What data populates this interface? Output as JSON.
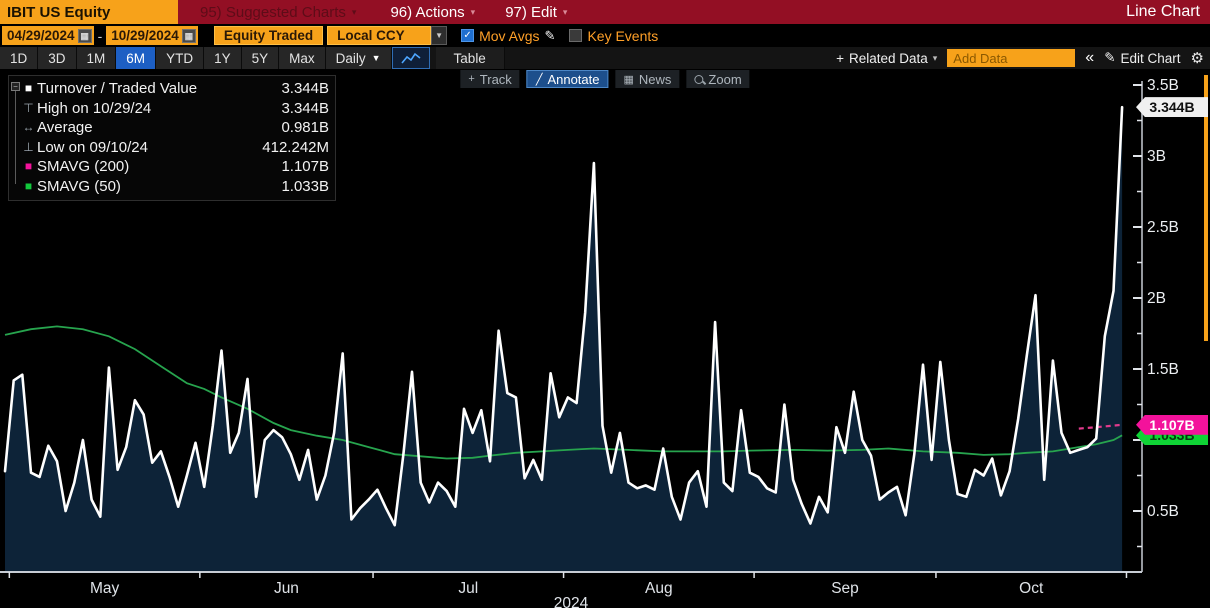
{
  "title_bar": {
    "ticker": "IBIT US Equity",
    "suggested_label": "95) Suggested Charts",
    "actions_label": "96) Actions",
    "edit_label": "97) Edit",
    "screen_label": "Line Chart"
  },
  "toolbar_filters": {
    "date_from": "04/29/2024",
    "date_sep": "-",
    "date_to": "10/29/2024",
    "security_field": "Equity Traded",
    "currency_field": "Local CCY",
    "mov_avgs_label": "Mov Avgs",
    "key_events_label": "Key Events",
    "mov_avgs_checked": true,
    "key_events_checked": false,
    "check_glyph": "✓"
  },
  "toolbar_ranges": {
    "ranges": [
      "1D",
      "3D",
      "1M",
      "6M",
      "YTD",
      "1Y",
      "5Y",
      "Max"
    ],
    "selected": "6M",
    "period": "Daily",
    "table_label": "Table",
    "related_data_plus": "+",
    "related_data_label": "Related Data",
    "add_data_placeholder": "Add Data",
    "collapse_label": "«",
    "edit_chart_label": "Edit Chart",
    "edit_chart_icon": "✎",
    "gear_icon": "⚙"
  },
  "chart_toolbar": {
    "buttons": [
      {
        "label": "Track",
        "icon": "+",
        "active": false
      },
      {
        "label": "Annotate",
        "icon": "╱",
        "active": true
      },
      {
        "label": "News",
        "icon": "▦",
        "active": false
      },
      {
        "label": "Zoom",
        "icon": "",
        "active": false
      }
    ]
  },
  "legend": {
    "rows": [
      {
        "glyph": "■",
        "color": "#ffffff",
        "label": "Turnover / Traded Value",
        "value": "3.344B"
      },
      {
        "glyph": "⊤",
        "color": "#9aa4ad",
        "label": "High on 10/29/24",
        "value": "3.344B"
      },
      {
        "glyph": "↔",
        "color": "#9aa4ad",
        "label": "Average",
        "value": "0.981B"
      },
      {
        "glyph": "⊥",
        "color": "#9aa4ad",
        "label": "Low on 09/10/24",
        "value": "412.242M"
      },
      {
        "glyph": "■",
        "color": "#f3129b",
        "label": "SMAVG (200)",
        "value": "1.107B"
      },
      {
        "glyph": "■",
        "color": "#12c93c",
        "label": "SMAVG (50)",
        "value": "1.033B"
      }
    ]
  },
  "axis_tags": {
    "last": {
      "text": "3.344B",
      "value": 3.344,
      "bg": "#f0f0f0",
      "fg": "#101010"
    },
    "smavg200": {
      "text": "1.107B",
      "value": 1.107,
      "bg": "#f3129b",
      "fg": "#ffffff"
    },
    "smavg50": {
      "text": "1.033B",
      "value": 1.033,
      "bg": "#0fd335",
      "fg": "#053a0e"
    }
  },
  "chart_data": {
    "type": "area",
    "title": "IBIT US Equity — Turnover / Traded Value, Daily, 04/29/2024 - 10/29/2024",
    "ylabel": "Turnover / Traded Value",
    "unit": "B (local ccy)",
    "ylim": [
      0,
      3.6
    ],
    "grid": false,
    "legend_position": "top-left",
    "y_ticks": [
      {
        "value": 0.25
      },
      {
        "value": 0.5,
        "label": "0.5B"
      },
      {
        "value": 0.75
      },
      {
        "value": 1.0,
        "label": "1B"
      },
      {
        "value": 1.25
      },
      {
        "value": 1.5,
        "label": "1.5B"
      },
      {
        "value": 1.75
      },
      {
        "value": 2.0,
        "label": "2B"
      },
      {
        "value": 2.25
      },
      {
        "value": 2.5,
        "label": "2.5B"
      },
      {
        "value": 2.75
      },
      {
        "value": 3.0,
        "label": "3B"
      },
      {
        "value": 3.25
      },
      {
        "value": 3.5,
        "label": "3.5B"
      }
    ],
    "x_axis": {
      "month_labels": [
        "May",
        "Jun",
        "Jul",
        "Aug",
        "Sep",
        "Oct"
      ],
      "month_start_days": [
        0.5,
        22.5,
        42.5,
        64.5,
        86.5,
        107.5
      ],
      "end_day": 129.5,
      "year_label": "2024"
    },
    "series": [
      {
        "name": "Turnover / Traded Value",
        "type": "area-line",
        "color": "#ffffff",
        "fill": "#0d2338",
        "values": [
          0.78,
          1.42,
          1.46,
          0.77,
          0.74,
          0.96,
          0.85,
          0.5,
          0.7,
          1.0,
          0.58,
          0.46,
          1.51,
          0.79,
          0.95,
          1.28,
          1.18,
          0.84,
          0.92,
          0.74,
          0.53,
          0.75,
          0.98,
          0.67,
          1.1,
          1.63,
          0.91,
          1.05,
          1.43,
          0.6,
          1.0,
          1.07,
          1.02,
          0.9,
          0.72,
          0.93,
          0.58,
          0.75,
          1.05,
          1.61,
          0.44,
          0.52,
          0.58,
          0.65,
          0.52,
          0.4,
          0.9,
          1.48,
          0.7,
          0.56,
          0.7,
          0.64,
          0.53,
          1.22,
          1.05,
          1.21,
          0.85,
          1.77,
          1.33,
          1.3,
          0.73,
          0.86,
          0.72,
          1.47,
          1.16,
          1.3,
          1.26,
          1.9,
          2.95,
          1.1,
          0.77,
          1.05,
          0.7,
          0.66,
          0.68,
          0.65,
          0.94,
          0.6,
          0.44,
          0.7,
          0.78,
          0.53,
          1.83,
          0.7,
          0.64,
          1.21,
          0.77,
          0.74,
          0.66,
          0.63,
          1.25,
          0.72,
          0.55,
          0.412,
          0.6,
          0.49,
          1.09,
          0.91,
          1.34,
          1.0,
          0.89,
          0.58,
          0.63,
          0.67,
          0.47,
          0.9,
          1.53,
          0.86,
          1.55,
          1.0,
          0.62,
          0.6,
          0.79,
          0.75,
          0.87,
          0.61,
          0.78,
          1.15,
          1.6,
          2.02,
          0.72,
          1.56,
          1.05,
          0.91,
          0.93,
          0.95,
          1.01,
          1.73,
          2.05,
          3.344
        ]
      },
      {
        "name": "SMAVG (50)",
        "type": "line",
        "color": "#27a44e",
        "points": [
          [
            0,
            1.74
          ],
          [
            3,
            1.78
          ],
          [
            6,
            1.8
          ],
          [
            9,
            1.78
          ],
          [
            12,
            1.73
          ],
          [
            15,
            1.64
          ],
          [
            18,
            1.52
          ],
          [
            21,
            1.4
          ],
          [
            23,
            1.36
          ],
          [
            25,
            1.3
          ],
          [
            28,
            1.22
          ],
          [
            31,
            1.12
          ],
          [
            33,
            1.07
          ],
          [
            36,
            1.03
          ],
          [
            39,
            1.0
          ],
          [
            42,
            0.95
          ],
          [
            45,
            0.9
          ],
          [
            48,
            0.885
          ],
          [
            51,
            0.87
          ],
          [
            54,
            0.875
          ],
          [
            56,
            0.89
          ],
          [
            59,
            0.91
          ],
          [
            62,
            0.92
          ],
          [
            65,
            0.93
          ],
          [
            68,
            0.94
          ],
          [
            72,
            0.93
          ],
          [
            76,
            0.92
          ],
          [
            79,
            0.92
          ],
          [
            83,
            0.92
          ],
          [
            86,
            0.925
          ],
          [
            91,
            0.93
          ],
          [
            95,
            0.925
          ],
          [
            99,
            0.93
          ],
          [
            102,
            0.94
          ],
          [
            106,
            0.92
          ],
          [
            110,
            0.91
          ],
          [
            113,
            0.895
          ],
          [
            116,
            0.9
          ],
          [
            118,
            0.91
          ],
          [
            121,
            0.92
          ],
          [
            124,
            0.95
          ],
          [
            126,
            0.97
          ],
          [
            128,
            1.0
          ],
          [
            129,
            1.033
          ]
        ]
      },
      {
        "name": "SMAVG (200)",
        "type": "line-dashed",
        "color": "#e03a8c",
        "points": [
          [
            124,
            1.08
          ],
          [
            126,
            1.09
          ],
          [
            129,
            1.107
          ]
        ]
      }
    ],
    "stats": {
      "last": 3.344,
      "high": {
        "date": "10/29/24",
        "value": 3.344
      },
      "average": 0.981,
      "low": {
        "date": "09/10/24",
        "value": 0.412242
      }
    }
  }
}
